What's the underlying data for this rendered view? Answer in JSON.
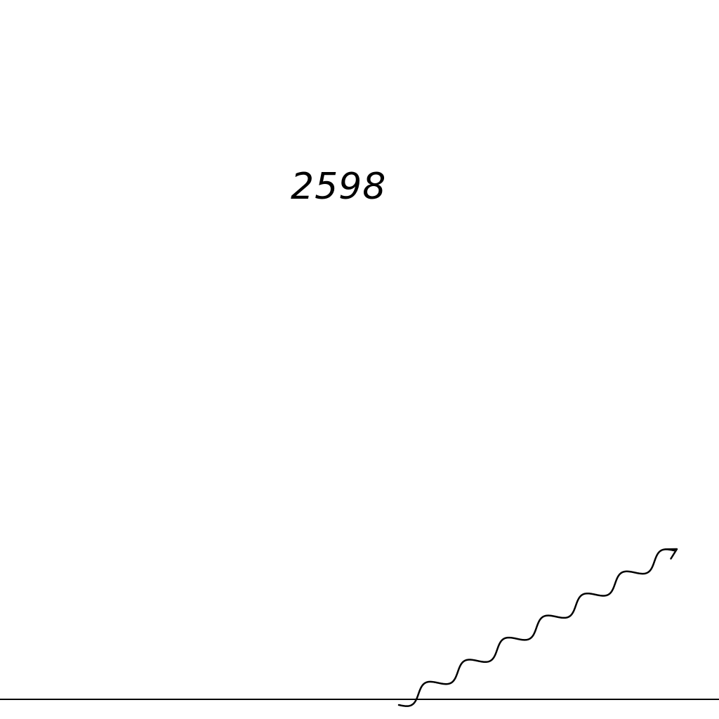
{
  "diagram": {
    "label": "2598",
    "colors": {
      "background": "#ffffff",
      "ink": "#000000"
    },
    "icons": {
      "arrow": "wavy-arrow-icon",
      "line": "horizontal-line"
    }
  }
}
